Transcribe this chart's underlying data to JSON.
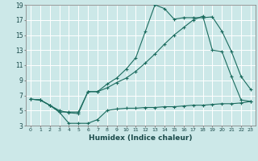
{
  "xlabel": "Humidex (Indice chaleur)",
  "bg_color": "#cce8e8",
  "grid_color": "#ffffff",
  "line_color": "#1a6b5e",
  "xlim": [
    -0.5,
    23.5
  ],
  "ylim": [
    3,
    19
  ],
  "xticks": [
    0,
    1,
    2,
    3,
    4,
    5,
    6,
    7,
    8,
    9,
    10,
    11,
    12,
    13,
    14,
    15,
    16,
    17,
    18,
    19,
    20,
    21,
    22,
    23
  ],
  "yticks": [
    3,
    5,
    7,
    9,
    11,
    13,
    15,
    17,
    19
  ],
  "line1_x": [
    0,
    1,
    2,
    3,
    4,
    5,
    6,
    7,
    8,
    9,
    10,
    11,
    12,
    13,
    14,
    15,
    16,
    17,
    18,
    19,
    20,
    21,
    22,
    23
  ],
  "line1_y": [
    6.5,
    6.4,
    5.7,
    5.0,
    4.7,
    4.6,
    7.5,
    7.5,
    8.5,
    9.3,
    10.5,
    12.0,
    15.5,
    19.0,
    18.5,
    17.1,
    17.3,
    17.3,
    17.3,
    17.4,
    15.5,
    12.8,
    9.5,
    7.8
  ],
  "line2_x": [
    0,
    1,
    2,
    3,
    4,
    5,
    6,
    7,
    8,
    9,
    10,
    11,
    12,
    13,
    14,
    15,
    16,
    17,
    18,
    19,
    20,
    21,
    22,
    23
  ],
  "line2_y": [
    6.5,
    6.4,
    5.7,
    4.8,
    3.3,
    3.3,
    3.3,
    3.8,
    5.0,
    5.2,
    5.3,
    5.3,
    5.4,
    5.4,
    5.5,
    5.5,
    5.6,
    5.7,
    5.7,
    5.8,
    5.9,
    5.9,
    6.0,
    6.2
  ],
  "line3_x": [
    0,
    1,
    2,
    3,
    4,
    5,
    6,
    7,
    8,
    9,
    10,
    11,
    12,
    13,
    14,
    15,
    16,
    17,
    18,
    19,
    20,
    21,
    22,
    23
  ],
  "line3_y": [
    6.5,
    6.4,
    5.7,
    4.8,
    4.8,
    4.8,
    7.5,
    7.5,
    8.0,
    8.7,
    9.3,
    10.2,
    11.3,
    12.5,
    13.8,
    15.0,
    16.0,
    17.0,
    17.5,
    13.0,
    12.8,
    9.5,
    6.4,
    6.2
  ]
}
